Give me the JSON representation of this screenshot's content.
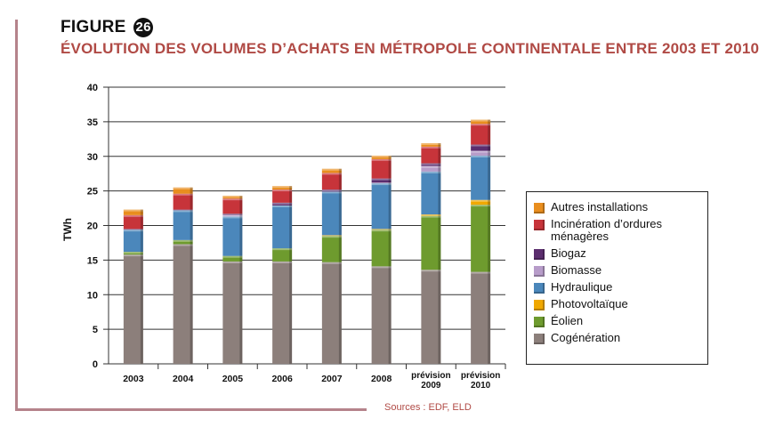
{
  "figure": {
    "label": "FIGURE",
    "number": "26",
    "title": "ÉVOLUTION DES VOLUMES D’ACHATS EN MÉTROPOLE CONTINENTALE ENTRE 2003 ET 2010",
    "sources": "Sources : EDF, ELD"
  },
  "colors": {
    "Cogénération": "#8c7f7b",
    "Éolien": "#6e9b2e",
    "Photovoltaïque": "#f0a800",
    "Hydraulique": "#4b87bb",
    "Biomasse": "#b79cc9",
    "Biogaz": "#5b2d6e",
    "Incinération d’ordures ménagères": "#c7343a",
    "Autres installations": "#e98e1e"
  },
  "chart_data": {
    "type": "bar",
    "stacked": true,
    "ylabel": "TWh",
    "xlabel": "",
    "ylim": [
      0,
      40
    ],
    "yticks": [
      "0",
      "5",
      "10",
      "15",
      "20",
      "25",
      "30",
      "35",
      "40"
    ],
    "grid": true,
    "legend_position": "right",
    "categories": [
      "2003",
      "2004",
      "2005",
      "2006",
      "2007",
      "2008",
      "prévision 2009",
      "prévision 2010"
    ],
    "series": [
      {
        "name": "Cogénération",
        "values": [
          15.8,
          17.3,
          14.8,
          14.8,
          14.7,
          14.1,
          13.6,
          13.3
        ]
      },
      {
        "name": "Éolien",
        "values": [
          0.4,
          0.6,
          0.8,
          1.9,
          3.8,
          5.3,
          7.8,
          9.7
        ]
      },
      {
        "name": "Photovoltaïque",
        "values": [
          0.0,
          0.0,
          0.0,
          0.0,
          0.1,
          0.1,
          0.2,
          0.7
        ]
      },
      {
        "name": "Hydraulique",
        "values": [
          3.2,
          4.3,
          5.7,
          6.2,
          6.3,
          6.6,
          6.2,
          6.4
        ]
      },
      {
        "name": "Biomasse",
        "values": [
          0.0,
          0.0,
          0.2,
          0.0,
          0.0,
          0.1,
          0.8,
          0.7
        ]
      },
      {
        "name": "Biogaz",
        "values": [
          0.1,
          0.1,
          0.2,
          0.4,
          0.3,
          0.6,
          0.4,
          0.9
        ]
      },
      {
        "name": "Incinération d’ordures ménagères",
        "values": [
          2.0,
          2.3,
          2.2,
          1.9,
          2.4,
          2.8,
          2.4,
          3.0
        ]
      },
      {
        "name": "Autres installations",
        "values": [
          0.8,
          0.9,
          0.4,
          0.5,
          0.6,
          0.5,
          0.5,
          0.6
        ]
      }
    ],
    "legend_order": [
      "Autres installations",
      "Incinération d’ordures ménagères",
      "Biogaz",
      "Biomasse",
      "Hydraulique",
      "Photovoltaïque",
      "Éolien",
      "Cogénération"
    ]
  }
}
